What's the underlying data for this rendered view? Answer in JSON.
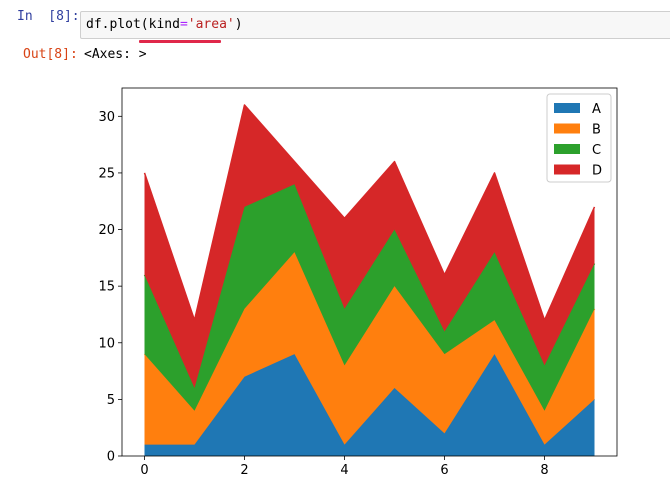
{
  "cell": {
    "in_prompt": "In  [8]:",
    "out_prompt": "Out[8]:",
    "code": {
      "prefix": "df.plot(",
      "kw": "kind",
      "eq": "=",
      "str": "'area'",
      "suffix": ")"
    },
    "output_text": "<Axes: >"
  },
  "colors": {
    "A": "#1f77b4",
    "B": "#ff7f0e",
    "C": "#2ca02c",
    "D": "#d62728"
  },
  "chart_data": {
    "type": "area",
    "stacked": true,
    "x": [
      0,
      1,
      2,
      3,
      4,
      5,
      6,
      7,
      8,
      9
    ],
    "xlim": [
      -0.45,
      9.45
    ],
    "ylim": [
      0,
      32.5
    ],
    "xticks": [
      0,
      2,
      4,
      6,
      8
    ],
    "yticks": [
      0,
      5,
      10,
      15,
      20,
      25,
      30
    ],
    "grid": false,
    "legend": "top-right",
    "series": [
      {
        "name": "A",
        "values": [
          1,
          1,
          7,
          9,
          1,
          6,
          2,
          9,
          1,
          5
        ]
      },
      {
        "name": "B",
        "values": [
          8,
          3,
          6,
          9,
          7,
          9,
          7,
          3,
          3,
          8
        ]
      },
      {
        "name": "C",
        "values": [
          7,
          2,
          9,
          6,
          5,
          5,
          2,
          6,
          4,
          4
        ]
      },
      {
        "name": "D",
        "values": [
          9,
          6,
          9,
          2,
          8,
          6,
          5,
          7,
          4,
          5
        ]
      }
    ]
  }
}
